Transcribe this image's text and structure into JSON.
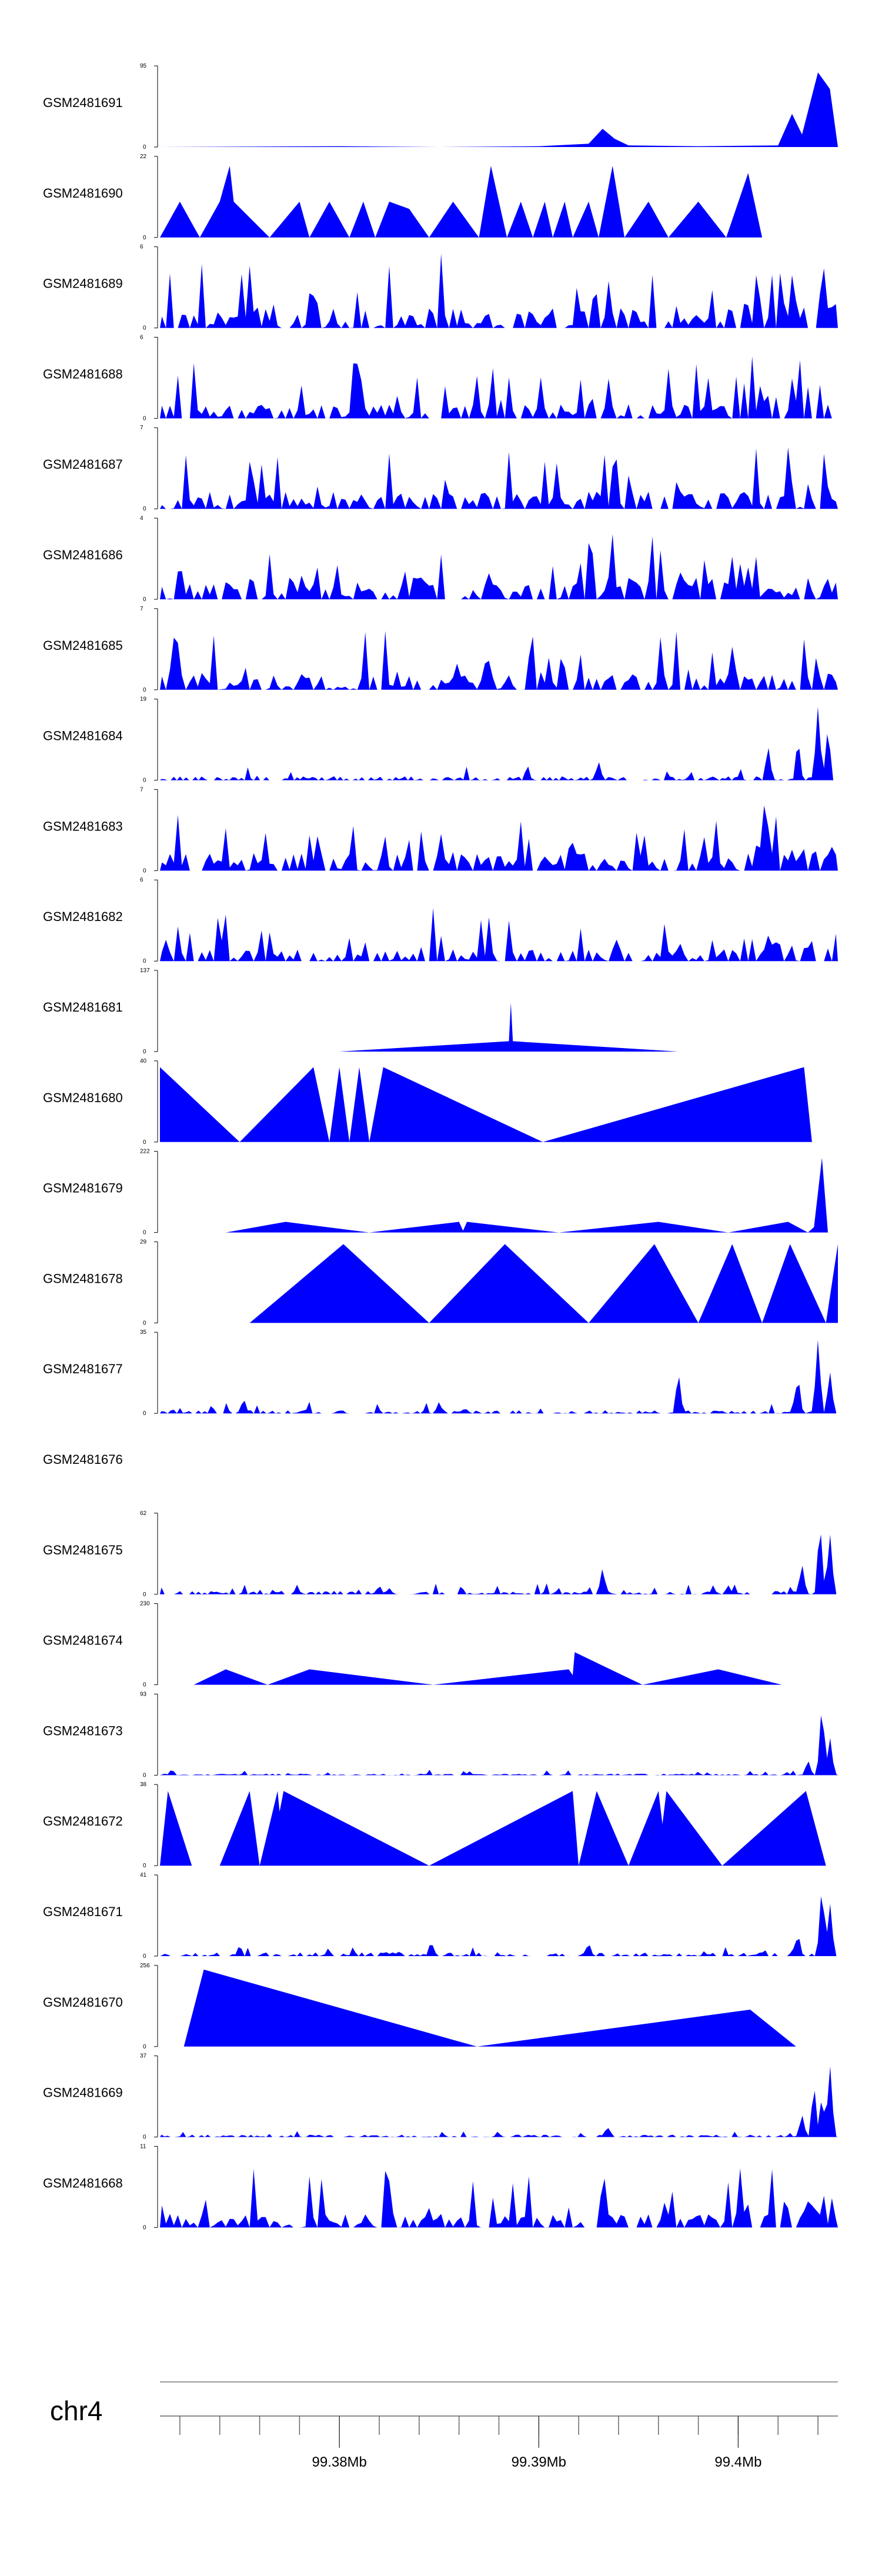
{
  "chart_data": {
    "type": "area",
    "title": "",
    "xlabel": "",
    "chromosome": "chr4",
    "x_unit": "Mb",
    "xlim": [
      99.371,
      99.405
    ],
    "x_ticks": [
      99.38,
      99.39,
      99.4
    ],
    "x_tick_labels": [
      "99.38Mb",
      "99.39Mb",
      "99.4Mb"
    ],
    "fill_color": "#0000ff",
    "grid": false,
    "legend": "none",
    "tracks": [
      {
        "name": "GSM2481691",
        "ymax": 95,
        "points": [
          [
            99.371,
            0
          ],
          [
            99.38,
            1
          ],
          [
            99.385,
            0
          ],
          [
            99.39,
            1
          ],
          [
            99.3925,
            4
          ],
          [
            99.3932,
            22
          ],
          [
            99.3938,
            10
          ],
          [
            99.3945,
            2
          ],
          [
            99.398,
            1
          ],
          [
            99.402,
            2
          ],
          [
            99.4027,
            40
          ],
          [
            99.4032,
            15
          ],
          [
            99.404,
            90
          ],
          [
            99.4046,
            70
          ],
          [
            99.405,
            0
          ]
        ]
      },
      {
        "name": "GSM2481690",
        "ymax": 22,
        "points": [
          [
            99.371,
            0
          ],
          [
            99.372,
            10
          ],
          [
            99.373,
            0
          ],
          [
            99.374,
            10
          ],
          [
            99.3745,
            20
          ],
          [
            99.3747,
            10
          ],
          [
            99.3765,
            0
          ],
          [
            99.378,
            10
          ],
          [
            99.3785,
            0
          ],
          [
            99.3795,
            10
          ],
          [
            99.3805,
            0
          ],
          [
            99.3812,
            10
          ],
          [
            99.3818,
            0
          ],
          [
            99.3825,
            10
          ],
          [
            99.3835,
            8
          ],
          [
            99.3845,
            0
          ],
          [
            99.3857,
            10
          ],
          [
            99.387,
            0
          ],
          [
            99.3876,
            20
          ],
          [
            99.3884,
            0
          ],
          [
            99.3891,
            10
          ],
          [
            99.3897,
            0
          ],
          [
            99.3903,
            10
          ],
          [
            99.3907,
            0
          ],
          [
            99.3913,
            10
          ],
          [
            99.3917,
            0
          ],
          [
            99.3925,
            10
          ],
          [
            99.393,
            0
          ],
          [
            99.3937,
            20
          ],
          [
            99.3943,
            0
          ],
          [
            99.3955,
            10
          ],
          [
            99.3965,
            0
          ],
          [
            99.398,
            10
          ],
          [
            99.3994,
            0
          ],
          [
            99.4005,
            18
          ],
          [
            99.4012,
            0
          ],
          [
            99.405,
            0
          ]
        ]
      },
      {
        "name": "GSM2481689",
        "ymax": 6,
        "shape": "dense",
        "seed": 689,
        "start": 99.371,
        "end": 99.405,
        "base": 0.25,
        "peak": 0.95,
        "tailBoost": 0.15
      },
      {
        "name": "GSM2481688",
        "ymax": 6,
        "shape": "dense",
        "seed": 688,
        "start": 99.371,
        "end": 99.405,
        "base": 0.18,
        "peak": 0.75,
        "tailBoost": 0.35
      },
      {
        "name": "GSM2481687",
        "ymax": 7,
        "shape": "dense",
        "seed": 687,
        "start": 99.371,
        "end": 99.405,
        "base": 0.22,
        "peak": 0.9,
        "tailBoost": 0.0
      },
      {
        "name": "GSM2481686",
        "ymax": 4,
        "shape": "dense",
        "seed": 686,
        "start": 99.371,
        "end": 99.405,
        "base": 0.3,
        "peak": 0.95,
        "tailBoost": 0.0
      },
      {
        "name": "GSM2481685",
        "ymax": 7,
        "shape": "dense",
        "seed": 685,
        "start": 99.371,
        "end": 99.405,
        "base": 0.2,
        "peak": 0.85,
        "tailBoost": 0.1
      },
      {
        "name": "GSM2481684",
        "ymax": 19,
        "shape": "low",
        "seed": 684,
        "start": 99.371,
        "end": 99.405,
        "base": 0.05,
        "peak": 0.15,
        "spikes": [
          [
            99.393,
            0.25
          ],
          [
            99.4015,
            0.45
          ],
          [
            99.403,
            0.55
          ],
          [
            99.404,
            0.95
          ],
          [
            99.4045,
            0.7
          ]
        ]
      },
      {
        "name": "GSM2481683",
        "ymax": 7,
        "shape": "dense",
        "seed": 683,
        "start": 99.371,
        "end": 99.405,
        "base": 0.22,
        "peak": 0.8,
        "tailBoost": 0.15
      },
      {
        "name": "GSM2481682",
        "ymax": 6,
        "shape": "dense",
        "seed": 682,
        "start": 99.371,
        "end": 99.405,
        "base": 0.15,
        "peak": 0.75,
        "tailBoost": 0.2
      },
      {
        "name": "GSM2481681",
        "ymax": 137,
        "points": [
          [
            99.38,
            0
          ],
          [
            99.3885,
            18
          ],
          [
            99.3886,
            85
          ],
          [
            99.3887,
            18
          ],
          [
            99.397,
            0
          ]
        ]
      },
      {
        "name": "GSM2481680",
        "ymax": 40,
        "points": [
          [
            99.371,
            38
          ],
          [
            99.375,
            0
          ],
          [
            99.3787,
            38
          ],
          [
            99.3795,
            0
          ],
          [
            99.38,
            38
          ],
          [
            99.3805,
            0
          ],
          [
            99.381,
            38
          ],
          [
            99.3815,
            0
          ],
          [
            99.3822,
            38
          ],
          [
            99.3902,
            0
          ],
          [
            99.4033,
            38
          ],
          [
            99.4037,
            0
          ]
        ]
      },
      {
        "name": "GSM2481679",
        "ymax": 222,
        "points": [
          [
            99.3743,
            0
          ],
          [
            99.3773,
            30
          ],
          [
            99.3815,
            0
          ],
          [
            99.386,
            30
          ],
          [
            99.3862,
            5
          ],
          [
            99.3864,
            30
          ],
          [
            99.391,
            0
          ],
          [
            99.396,
            30
          ],
          [
            99.3995,
            0
          ],
          [
            99.4025,
            30
          ],
          [
            99.4035,
            0
          ],
          [
            99.4038,
            15
          ],
          [
            99.4042,
            210
          ],
          [
            99.4045,
            0
          ]
        ]
      },
      {
        "name": "GSM2481678",
        "ymax": 29,
        "points": [
          [
            99.3755,
            0
          ],
          [
            99.3802,
            29
          ],
          [
            99.3845,
            0
          ],
          [
            99.3883,
            29
          ],
          [
            99.3925,
            0
          ],
          [
            99.3958,
            29
          ],
          [
            99.398,
            0
          ],
          [
            99.3997,
            29
          ],
          [
            99.4012,
            0
          ],
          [
            99.4026,
            29
          ],
          [
            99.4044,
            0
          ],
          [
            99.405,
            29
          ],
          [
            99.405,
            0
          ]
        ]
      },
      {
        "name": "GSM2481677",
        "ymax": 35,
        "shape": "low",
        "seed": 677,
        "start": 99.371,
        "end": 99.405,
        "base": 0.04,
        "peak": 0.12,
        "spikes": [
          [
            99.3752,
            0.2
          ],
          [
            99.385,
            0.15
          ],
          [
            99.397,
            0.55
          ],
          [
            99.403,
            0.5
          ],
          [
            99.404,
            0.95
          ],
          [
            99.4046,
            0.55
          ]
        ]
      },
      {
        "name": "GSM2481676",
        "ymax": null,
        "points": []
      },
      {
        "name": "GSM2481675",
        "ymax": 62,
        "shape": "low",
        "seed": 675,
        "start": 99.371,
        "end": 99.405,
        "base": 0.04,
        "peak": 0.1,
        "spikes": [
          [
            99.382,
            0.12
          ],
          [
            99.3932,
            0.35
          ],
          [
            99.3995,
            0.12
          ],
          [
            99.4032,
            0.4
          ],
          [
            99.4041,
            0.95
          ],
          [
            99.4046,
            0.8
          ]
        ]
      },
      {
        "name": "GSM2481674",
        "ymax": 230,
        "points": [
          [
            99.3727,
            0
          ],
          [
            99.3743,
            45
          ],
          [
            99.3764,
            0
          ],
          [
            99.3785,
            45
          ],
          [
            99.3847,
            0
          ],
          [
            99.3915,
            45
          ],
          [
            99.3917,
            28
          ],
          [
            99.3918,
            95
          ],
          [
            99.3952,
            0
          ],
          [
            99.399,
            45
          ],
          [
            99.4022,
            0
          ]
        ]
      },
      {
        "name": "GSM2481673",
        "ymax": 93,
        "shape": "low",
        "seed": 673,
        "start": 99.371,
        "end": 99.405,
        "base": 0.02,
        "peak": 0.06,
        "spikes": [
          [
            99.3716,
            0.08
          ],
          [
            99.4035,
            0.2
          ],
          [
            99.4042,
            0.95
          ],
          [
            99.4046,
            0.5
          ]
        ]
      },
      {
        "name": "GSM2481672",
        "ymax": 38,
        "points": [
          [
            99.371,
            0
          ],
          [
            99.3714,
            36
          ],
          [
            99.3726,
            0
          ],
          [
            99.374,
            0
          ],
          [
            99.3755,
            36
          ],
          [
            99.376,
            0
          ],
          [
            99.3769,
            36
          ],
          [
            99.377,
            26
          ],
          [
            99.3772,
            36
          ],
          [
            99.3845,
            0
          ],
          [
            99.3917,
            36
          ],
          [
            99.392,
            0
          ],
          [
            99.3929,
            36
          ],
          [
            99.3945,
            0
          ],
          [
            99.396,
            36
          ],
          [
            99.3962,
            20
          ],
          [
            99.3964,
            36
          ],
          [
            99.3992,
            0
          ],
          [
            99.4034,
            36
          ],
          [
            99.4044,
            0
          ]
        ]
      },
      {
        "name": "GSM2481671",
        "ymax": 41,
        "shape": "low",
        "seed": 671,
        "start": 99.371,
        "end": 99.405,
        "base": 0.05,
        "peak": 0.12,
        "spikes": [
          [
            99.375,
            0.15
          ],
          [
            99.3846,
            0.2
          ],
          [
            99.3925,
            0.18
          ],
          [
            99.403,
            0.3
          ],
          [
            99.4042,
            0.95
          ],
          [
            99.4046,
            0.7
          ]
        ]
      },
      {
        "name": "GSM2481670",
        "ymax": 256,
        "points": [
          [
            99.3722,
            0
          ],
          [
            99.3732,
            250
          ],
          [
            99.3869,
            0
          ],
          [
            99.4006,
            120
          ],
          [
            99.4029,
            0
          ]
        ]
      },
      {
        "name": "GSM2481669",
        "ymax": 37,
        "shape": "low",
        "seed": 669,
        "start": 99.371,
        "end": 99.405,
        "base": 0.03,
        "peak": 0.07,
        "spikes": [
          [
            99.3935,
            0.12
          ],
          [
            99.4032,
            0.3
          ],
          [
            99.4038,
            0.7
          ],
          [
            99.4042,
            0.55
          ],
          [
            99.4046,
            0.95
          ]
        ]
      },
      {
        "name": "GSM2481668",
        "ymax": 11,
        "shape": "dense",
        "seed": 668,
        "start": 99.371,
        "end": 99.405,
        "base": 0.18,
        "peak": 0.8,
        "tailBoost": 0.2
      }
    ]
  }
}
